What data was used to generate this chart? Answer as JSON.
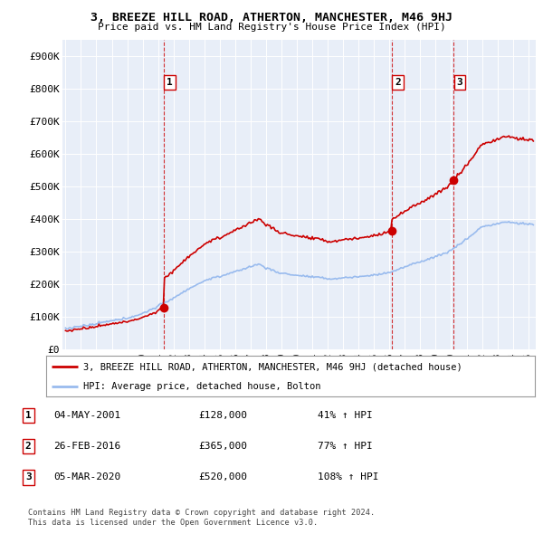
{
  "title": "3, BREEZE HILL ROAD, ATHERTON, MANCHESTER, M46 9HJ",
  "subtitle": "Price paid vs. HM Land Registry's House Price Index (HPI)",
  "ylabel_ticks": [
    "£0",
    "£100K",
    "£200K",
    "£300K",
    "£400K",
    "£500K",
    "£600K",
    "£700K",
    "£800K",
    "£900K"
  ],
  "ytick_values": [
    0,
    100000,
    200000,
    300000,
    400000,
    500000,
    600000,
    700000,
    800000,
    900000
  ],
  "ylim": [
    0,
    950000
  ],
  "xlim_start": 1994.8,
  "xlim_end": 2025.5,
  "sale_dates": [
    2001.35,
    2016.15,
    2020.17
  ],
  "sale_prices": [
    128000,
    365000,
    520000
  ],
  "sale_labels": [
    "1",
    "2",
    "3"
  ],
  "property_color": "#cc0000",
  "hpi_color": "#99bbee",
  "legend_property": "3, BREEZE HILL ROAD, ATHERTON, MANCHESTER, M46 9HJ (detached house)",
  "legend_hpi": "HPI: Average price, detached house, Bolton",
  "table_rows": [
    {
      "num": "1",
      "date": "04-MAY-2001",
      "price": "£128,000",
      "pct": "41% ↑ HPI"
    },
    {
      "num": "2",
      "date": "26-FEB-2016",
      "price": "£365,000",
      "pct": "77% ↑ HPI"
    },
    {
      "num": "3",
      "date": "05-MAR-2020",
      "price": "£520,000",
      "pct": "108% ↑ HPI"
    }
  ],
  "footnote1": "Contains HM Land Registry data © Crown copyright and database right 2024.",
  "footnote2": "This data is licensed under the Open Government Licence v3.0.",
  "background_color": "#ffffff",
  "plot_bg_color": "#e8eef8"
}
